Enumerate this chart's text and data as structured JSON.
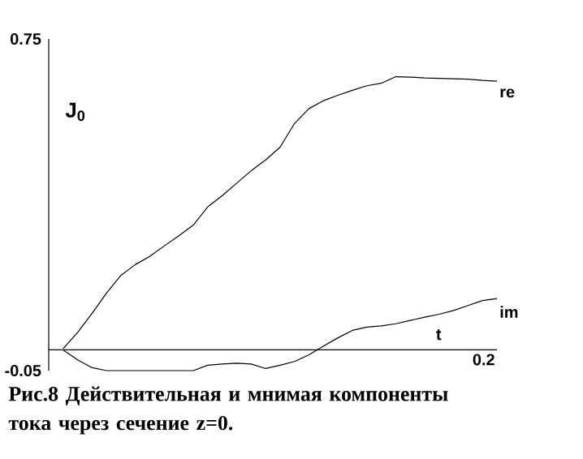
{
  "chart_data": {
    "type": "line",
    "xlabel": "t",
    "ylabel": "J$_{0}$",
    "annotations": [
      "Рис.8 Действительная и мнимая компоненты тока через сечение z=0.",
      "0.2"
    ],
    "categories": [
      null,
      null,
      null,
      null,
      null,
      null,
      null,
      null,
      null,
      null,
      null,
      null,
      null,
      null,
      null,
      null,
      null,
      null,
      null,
      null,
      null,
      null,
      null,
      null,
      null,
      null,
      null,
      null,
      null,
      null,
      null
    ],
    "ylim": [
      -0.05,
      0.75
    ],
    "yticks": [
      {
        "value": -0.05,
        "label": "-0.05"
      },
      {
        "value": 0.75,
        "label": "0.75"
      }
    ],
    "marker": "none",
    "series": [
      {
        "name": "re",
        "color": "#000000",
        "values": [
          0.003,
          0.042,
          0.088,
          0.137,
          0.18,
          0.206,
          0.226,
          0.251,
          0.275,
          0.301,
          0.345,
          0.372,
          0.402,
          0.432,
          0.458,
          0.489,
          0.546,
          0.582,
          0.601,
          0.614,
          0.626,
          0.637,
          0.643,
          0.659,
          0.658,
          0.656,
          0.655,
          0.654,
          0.653,
          0.65,
          0.648
        ]
      },
      {
        "name": "im",
        "color": "#000000",
        "values": [
          0,
          -0.024,
          -0.043,
          -0.05,
          -0.05,
          -0.05,
          -0.05,
          -0.05,
          -0.05,
          -0.05,
          -0.037,
          -0.034,
          -0.032,
          -0.034,
          -0.045,
          -0.037,
          -0.028,
          -0.012,
          0.009,
          0.029,
          0.047,
          0.055,
          0.058,
          0.063,
          0.071,
          0.079,
          0.086,
          0.095,
          0.107,
          0.119,
          0.124
        ]
      }
    ]
  }
}
